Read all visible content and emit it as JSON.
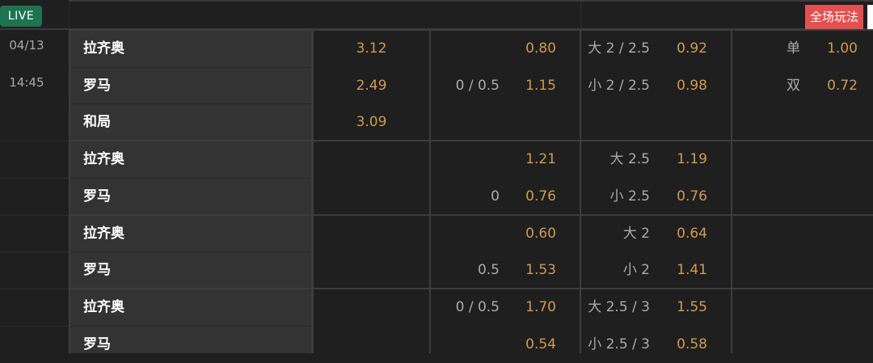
{
  "header": {
    "live_label": "LIVE",
    "all_markets_label": "全场玩法"
  },
  "match": {
    "date": "04/13",
    "time": "14:45"
  },
  "colors": {
    "live": "#1e7350",
    "odds": "#cf9a52",
    "all_markets": "#e25050"
  },
  "groups": [
    {
      "rows": [
        {
          "team": "拉齐奥",
          "x12": "3.12",
          "hcap_line": "",
          "hcap_odds": "0.80",
          "ou_label": "大 2 / 2.5",
          "ou_odds": "0.92",
          "oe_label": "单",
          "oe_odds": "1.00"
        },
        {
          "team": "罗马",
          "x12": "2.49",
          "hcap_line": "0 / 0.5",
          "hcap_odds": "1.15",
          "ou_label": "小 2 / 2.5",
          "ou_odds": "0.98",
          "oe_label": "双",
          "oe_odds": "0.72"
        },
        {
          "team": "和局",
          "x12": "3.09",
          "hcap_line": "",
          "hcap_odds": "",
          "ou_label": "",
          "ou_odds": "",
          "oe_label": "",
          "oe_odds": ""
        }
      ]
    },
    {
      "rows": [
        {
          "team": "拉齐奥",
          "x12": "",
          "hcap_line": "",
          "hcap_odds": "1.21",
          "ou_label": "大 2.5",
          "ou_odds": "1.19",
          "oe_label": "",
          "oe_odds": ""
        },
        {
          "team": "罗马",
          "x12": "",
          "hcap_line": "0",
          "hcap_odds": "0.76",
          "ou_label": "小 2.5",
          "ou_odds": "0.76",
          "oe_label": "",
          "oe_odds": ""
        }
      ]
    },
    {
      "rows": [
        {
          "team": "拉齐奥",
          "x12": "",
          "hcap_line": "",
          "hcap_odds": "0.60",
          "ou_label": "大 2",
          "ou_odds": "0.64",
          "oe_label": "",
          "oe_odds": ""
        },
        {
          "team": "罗马",
          "x12": "",
          "hcap_line": "0.5",
          "hcap_odds": "1.53",
          "ou_label": "小 2",
          "ou_odds": "1.41",
          "oe_label": "",
          "oe_odds": ""
        }
      ]
    },
    {
      "rows": [
        {
          "team": "拉齐奥",
          "x12": "",
          "hcap_line": "0 / 0.5",
          "hcap_odds": "1.70",
          "ou_label": "大 2.5 / 3",
          "ou_odds": "1.55",
          "oe_label": "",
          "oe_odds": ""
        },
        {
          "team": "罗马",
          "x12": "",
          "hcap_line": "",
          "hcap_odds": "0.54",
          "ou_label": "小 2.5 / 3",
          "ou_odds": "0.58",
          "oe_label": "",
          "oe_odds": ""
        }
      ]
    }
  ]
}
